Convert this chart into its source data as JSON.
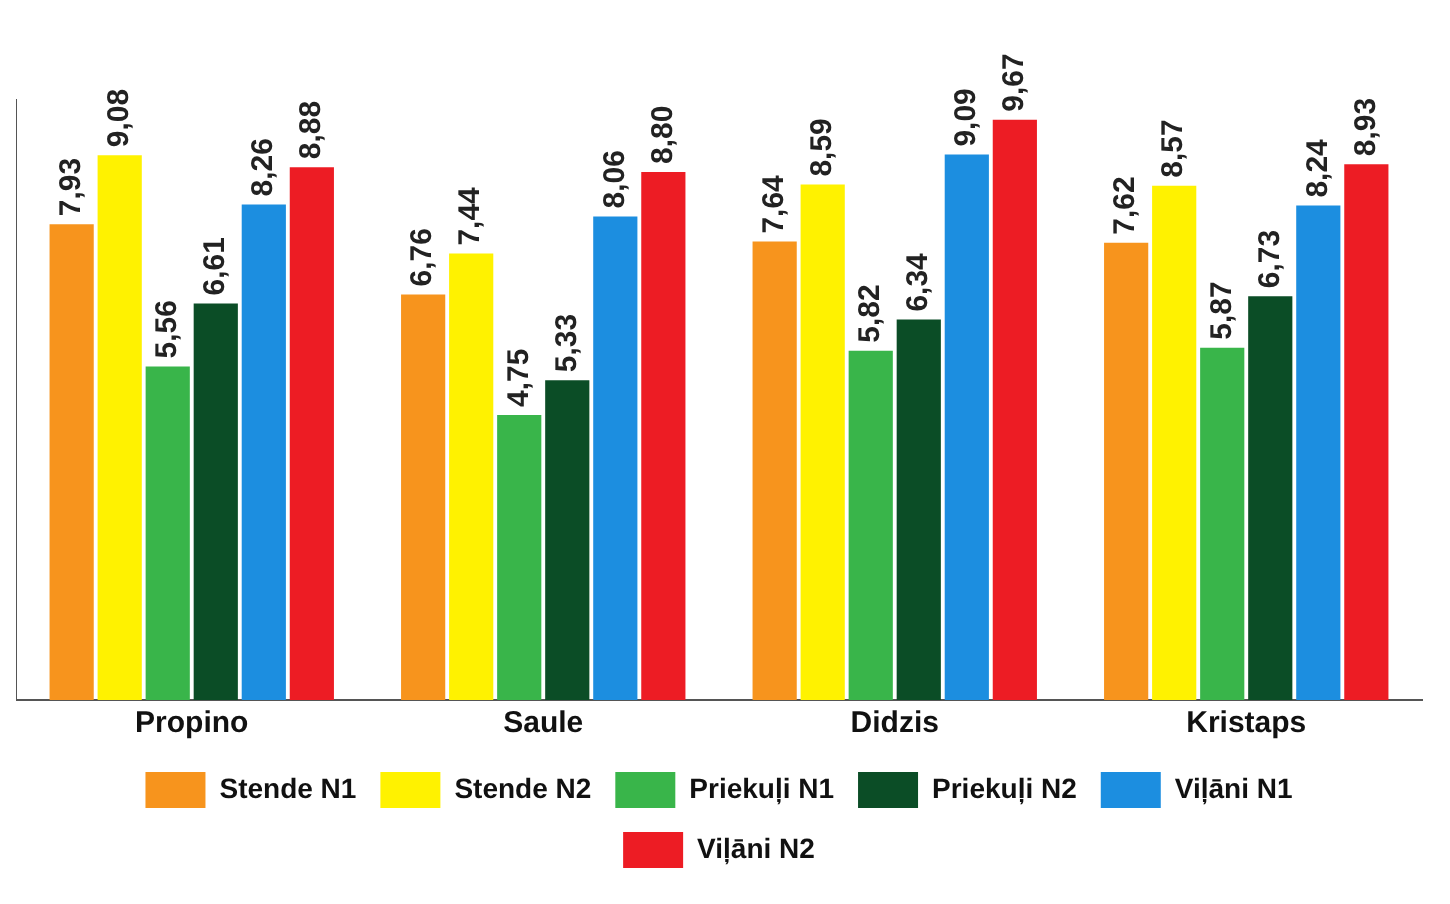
{
  "chart_data": {
    "type": "bar",
    "categories": [
      "Propino",
      "Saule",
      "Didzis",
      "Kristaps"
    ],
    "series": [
      {
        "name": "Stende N1",
        "color": "#f7941d",
        "values": [
          7.93,
          6.76,
          7.64,
          7.62
        ],
        "value_labels": [
          "7,93",
          "6,76",
          "7,64",
          "7,62"
        ]
      },
      {
        "name": "Stende N2",
        "color": "#fff200",
        "values": [
          9.08,
          7.44,
          8.59,
          8.57
        ],
        "value_labels": [
          "9,08",
          "7,44",
          "8,59",
          "8,57"
        ]
      },
      {
        "name": "Priekuļi N1",
        "color": "#39b54a",
        "values": [
          5.56,
          4.75,
          5.82,
          5.87
        ],
        "value_labels": [
          "5,56",
          "4,75",
          "5,82",
          "5,87"
        ]
      },
      {
        "name": "Priekuļi N2",
        "color": "#0b4d26",
        "values": [
          6.61,
          5.33,
          6.34,
          6.73
        ],
        "value_labels": [
          "6,61",
          "5,33",
          "6,34",
          "6,73"
        ]
      },
      {
        "name": "Viļāni N1",
        "color": "#1c8ee0",
        "values": [
          8.26,
          8.06,
          9.09,
          8.24
        ],
        "value_labels": [
          "8,26",
          "8,06",
          "9,09",
          "8,24"
        ]
      },
      {
        "name": "Viļāni N2",
        "color": "#ed1c24",
        "values": [
          8.88,
          8.8,
          9.67,
          8.93
        ],
        "value_labels": [
          "8,88",
          "8,80",
          "9,67",
          "8,93"
        ]
      }
    ],
    "legend": "bottom",
    "grid": false,
    "tick_labels": "x"
  }
}
